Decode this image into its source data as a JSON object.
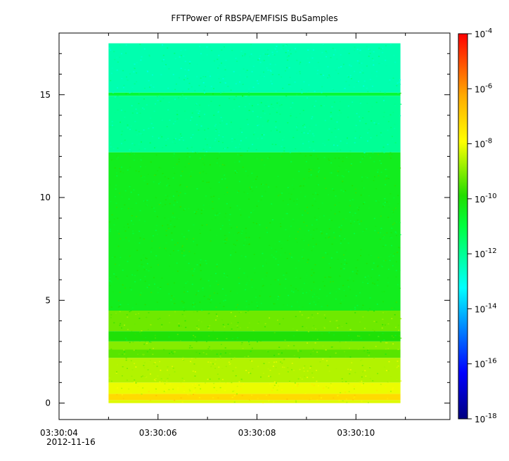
{
  "chart_data": {
    "type": "heatmap",
    "title": "FFTPower of RBSPA/EMFISIS  BuSamples",
    "xlabel": "",
    "ylabel": "",
    "x_axis": {
      "range": [
        "03:30:04",
        "03:30:11.9"
      ],
      "ticks": [
        "03:30:04",
        "03:30:06",
        "03:30:08",
        "03:30:10"
      ],
      "date_label": "2012-11-16"
    },
    "y_axis": {
      "range": [
        -0.8,
        18.0
      ],
      "ticks": [
        0,
        5,
        10,
        15
      ]
    },
    "data_extent": {
      "x": [
        "03:30:05",
        "03:30:10.9"
      ],
      "y": [
        0,
        17.5
      ]
    },
    "colorbar": {
      "scale": "log",
      "colormap": "rainbow (blue to red)",
      "range": [
        "1e-18",
        "1e-4"
      ],
      "ticks": [
        {
          "base": "10",
          "exp": "-4"
        },
        {
          "base": "10",
          "exp": "-6"
        },
        {
          "base": "10",
          "exp": "-8"
        },
        {
          "base": "10",
          "exp": "-10"
        },
        {
          "base": "10",
          "exp": "-12"
        },
        {
          "base": "10",
          "exp": "-14"
        },
        {
          "base": "10",
          "exp": "-16"
        },
        {
          "base": "10",
          "exp": "-18"
        }
      ]
    },
    "bands": [
      {
        "y_from": 0.0,
        "y_to": 0.15,
        "log10_power": -8.2
      },
      {
        "y_from": 0.15,
        "y_to": 0.45,
        "log10_power": -7.2
      },
      {
        "y_from": 0.45,
        "y_to": 1.0,
        "log10_power": -8.1
      },
      {
        "y_from": 1.0,
        "y_to": 2.2,
        "log10_power": -8.6
      },
      {
        "y_from": 2.2,
        "y_to": 2.6,
        "log10_power": -9.4
      },
      {
        "y_from": 2.6,
        "y_to": 3.0,
        "log10_power": -9.0
      },
      {
        "y_from": 3.0,
        "y_to": 3.5,
        "log10_power": -10.0
      },
      {
        "y_from": 3.5,
        "y_to": 4.5,
        "log10_power": -9.2
      },
      {
        "y_from": 4.5,
        "y_to": 12.2,
        "log10_power": -10.4
      },
      {
        "y_from": 12.2,
        "y_to": 14.95,
        "log10_power": -12.0
      },
      {
        "y_from": 14.95,
        "y_to": 15.1,
        "log10_power": -10.8
      },
      {
        "y_from": 15.1,
        "y_to": 17.5,
        "log10_power": -12.3
      }
    ]
  }
}
